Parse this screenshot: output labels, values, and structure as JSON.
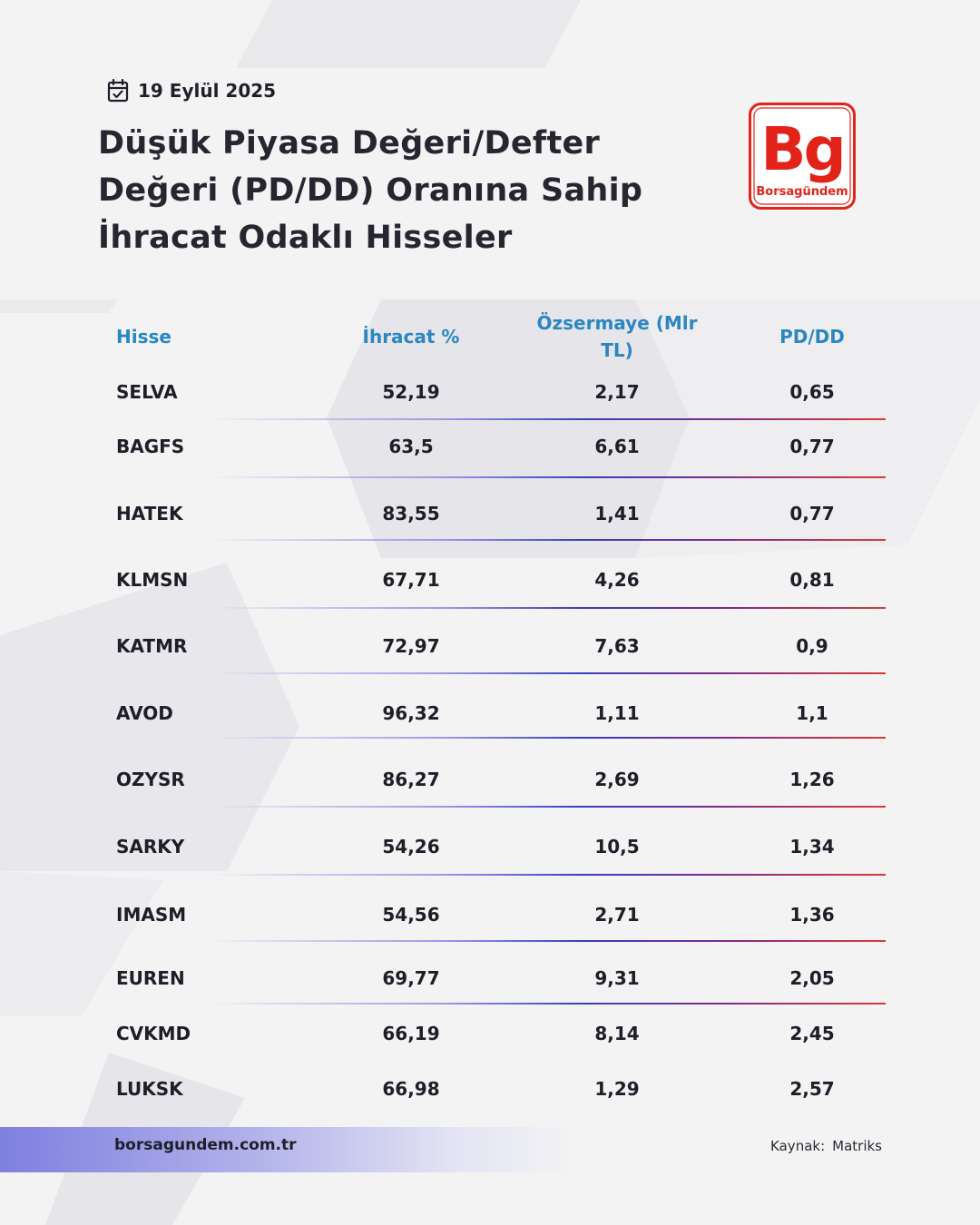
{
  "header": {
    "date": "19 Eylül 2025",
    "title_lines": [
      "Düşük Piyasa Değeri/Defter",
      "Değeri (PD/DD) Oranına Sahip",
      "İhracat Odaklı Hisseler"
    ]
  },
  "logo": {
    "mark": "Bg",
    "name": "Borsagündem",
    "color": "#e2231a"
  },
  "table": {
    "columns": [
      "Hisse",
      "İhracat %",
      "Özsermaye (Mlr TL)",
      "PD/DD"
    ],
    "rows": [
      [
        "SELVA",
        "52,19",
        "2,17",
        "0,65"
      ],
      [
        "BAGFS",
        "63,5",
        "6,61",
        "0,77"
      ],
      [
        "HATEK",
        "83,55",
        "1,41",
        "0,77"
      ],
      [
        "KLMSN",
        "67,71",
        "4,26",
        "0,81"
      ],
      [
        "KATMR",
        "72,97",
        "7,63",
        "0,9"
      ],
      [
        "AVOD",
        "96,32",
        "1,11",
        "1,1"
      ],
      [
        "OZYSR",
        "86,27",
        "2,69",
        "1,26"
      ],
      [
        "SARKY",
        "54,26",
        "10,5",
        "1,34"
      ],
      [
        "IMASM",
        "54,56",
        "2,71",
        "1,36"
      ],
      [
        "EUREN",
        "69,77",
        "9,31",
        "2,05"
      ],
      [
        "CVKMD",
        "66,19",
        "8,14",
        "2,45"
      ],
      [
        "LUKSK",
        "66,98",
        "1,29",
        "2,57"
      ]
    ]
  },
  "footer": {
    "website": "borsagundem.com.tr",
    "source_label": "Kaynak:",
    "source_value": "Matriks"
  },
  "colors": {
    "header_blue": "#2b86c2",
    "brand_red": "#e2231a",
    "footer_band": "#7f7fe0"
  }
}
